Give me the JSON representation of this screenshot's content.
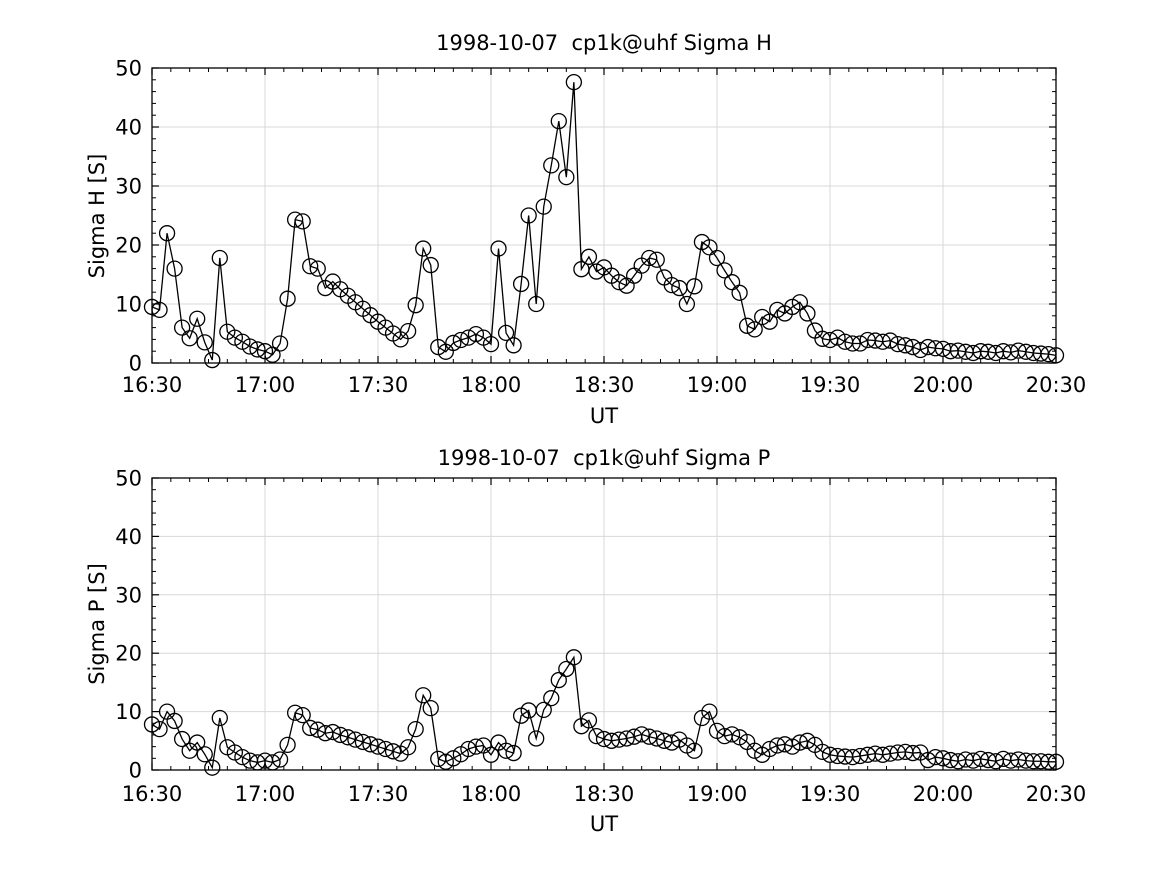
{
  "figure": {
    "background": "#ffffff",
    "line_color": "#000000",
    "grid_color": "#d8d8d8",
    "marker": "open-circle"
  },
  "chart_data": [
    {
      "type": "line",
      "title": "1998-10-07  cp1k@uhf Sigma H",
      "xlabel": "UT",
      "ylabel": "Sigma H [S]",
      "ylim": [
        0,
        50
      ],
      "yticks": [
        0,
        10,
        20,
        30,
        40,
        50
      ],
      "y_minor_step": 2,
      "x_start_label": "16:30",
      "x_step_minutes": 2,
      "x_minor_step_minutes": 5,
      "xlim_minutes": [
        0,
        240
      ],
      "xtick_minutes": [
        0,
        30,
        60,
        90,
        120,
        150,
        180,
        210,
        240
      ],
      "xtick_labels": [
        "16:30",
        "17:00",
        "17:30",
        "18:00",
        "18:30",
        "19:00",
        "19:30",
        "20:00",
        "20:30"
      ],
      "grid": true,
      "values": [
        9.5,
        9.0,
        22.0,
        16.0,
        6.0,
        4.2,
        7.5,
        3.5,
        0.5,
        17.8,
        5.3,
        4.3,
        3.6,
        2.8,
        2.3,
        2.0,
        1.4,
        3.3,
        10.9,
        24.3,
        24.0,
        16.4,
        16.0,
        12.7,
        13.8,
        12.5,
        11.4,
        10.3,
        9.2,
        8.1,
        7.0,
        6.0,
        5.0,
        4.0,
        5.4,
        9.8,
        19.4,
        16.6,
        2.7,
        1.9,
        3.4,
        3.9,
        4.3,
        4.9,
        4.3,
        3.2,
        19.4,
        5.1,
        3.0,
        13.4,
        25.0,
        10.0,
        26.5,
        33.5,
        41.0,
        31.5,
        47.6,
        15.9,
        18.0,
        15.5,
        16.2,
        14.8,
        13.7,
        13.1,
        14.8,
        16.5,
        17.8,
        17.5,
        14.5,
        13.2,
        12.7,
        10.0,
        13.0,
        20.5,
        19.6,
        17.8,
        15.7,
        13.7,
        11.9,
        6.3,
        5.7,
        7.8,
        7.0,
        9.0,
        8.4,
        9.5,
        10.3,
        8.4,
        5.5,
        4.1,
        3.9,
        4.3,
        3.6,
        3.3,
        3.3,
        3.9,
        3.8,
        3.6,
        3.8,
        3.2,
        3.0,
        2.7,
        2.2,
        2.7,
        2.5,
        2.4,
        2.0,
        2.1,
        1.9,
        1.7,
        2.0,
        1.9,
        1.7,
        2.0,
        1.8,
        2.1,
        1.9,
        1.7,
        1.6,
        1.5,
        1.3
      ]
    },
    {
      "type": "line",
      "title": "1998-10-07  cp1k@uhf Sigma P",
      "xlabel": "UT",
      "ylabel": "Sigma P [S]",
      "ylim": [
        0,
        50
      ],
      "yticks": [
        0,
        10,
        20,
        30,
        40,
        50
      ],
      "y_minor_step": 2,
      "x_start_label": "16:30",
      "x_step_minutes": 2,
      "x_minor_step_minutes": 5,
      "xlim_minutes": [
        0,
        240
      ],
      "xtick_minutes": [
        0,
        30,
        60,
        90,
        120,
        150,
        180,
        210,
        240
      ],
      "xtick_labels": [
        "16:30",
        "17:00",
        "17:30",
        "18:00",
        "18:30",
        "19:00",
        "19:30",
        "20:00",
        "20:30"
      ],
      "grid": true,
      "values": [
        7.8,
        7.0,
        10.0,
        8.4,
        5.3,
        3.3,
        4.7,
        2.7,
        0.4,
        8.9,
        3.9,
        3.0,
        2.2,
        1.6,
        1.3,
        1.6,
        1.3,
        1.8,
        4.3,
        9.8,
        9.4,
        7.2,
        6.9,
        6.3,
        6.5,
        6.0,
        5.6,
        5.2,
        4.8,
        4.4,
        4.0,
        3.6,
        3.2,
        2.8,
        3.9,
        7.0,
        12.8,
        10.6,
        1.9,
        1.4,
        2.0,
        2.7,
        3.6,
        4.0,
        4.2,
        2.6,
        4.7,
        3.3,
        2.9,
        9.3,
        10.2,
        5.4,
        10.3,
        12.3,
        15.4,
        17.3,
        19.3,
        7.5,
        8.5,
        5.8,
        5.3,
        5.0,
        5.2,
        5.4,
        5.7,
        6.1,
        5.7,
        5.4,
        5.0,
        4.7,
        5.2,
        4.2,
        3.3,
        8.9,
        10.0,
        6.7,
        5.8,
        6.1,
        5.6,
        4.8,
        3.3,
        2.6,
        3.6,
        4.2,
        4.4,
        4.0,
        4.7,
        5.0,
        4.3,
        3.1,
        2.6,
        2.4,
        2.3,
        2.2,
        2.4,
        2.6,
        2.8,
        2.6,
        2.8,
        3.0,
        3.1,
        2.9,
        3.0,
        1.7,
        2.2,
        2.0,
        1.7,
        1.5,
        1.8,
        1.6,
        1.9,
        1.7,
        1.5,
        1.9,
        1.6,
        1.8,
        1.6,
        1.5,
        1.5,
        1.4,
        1.4
      ]
    }
  ]
}
